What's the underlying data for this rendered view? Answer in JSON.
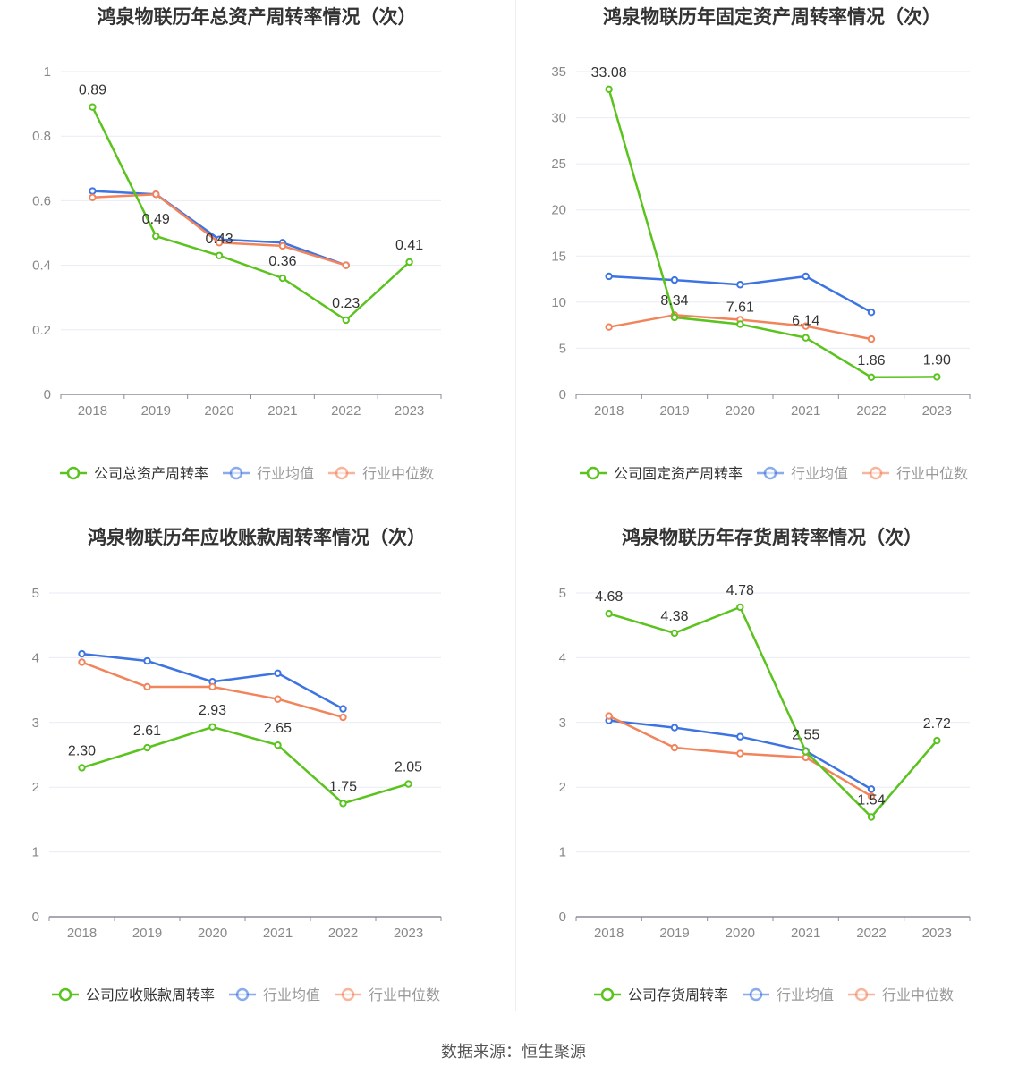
{
  "source": "数据来源：恒生聚源",
  "colors": {
    "company": "#5ac31e",
    "avg": "#3d74e2",
    "median": "#f2845c",
    "grid": "#e8ebf2",
    "axis": "#8a8d99",
    "tick": "#888888",
    "title": "#333333"
  },
  "chart_data": [
    {
      "type": "line",
      "title": "鸿泉物联历年总资产周转率情况（次）",
      "categories": [
        "2018",
        "2019",
        "2020",
        "2021",
        "2022",
        "2023"
      ],
      "ylim": [
        0,
        1
      ],
      "yticks": [
        0,
        0.2,
        0.4,
        0.6,
        0.8,
        1
      ],
      "ytick_labels": [
        "0",
        "0.2",
        "0.4",
        "0.6",
        "0.8",
        "1"
      ],
      "grid": true,
      "legend_position": "bottom",
      "series": [
        {
          "name": "公司总资产周转率",
          "key": "company",
          "values": [
            0.89,
            0.49,
            0.43,
            0.36,
            0.23,
            0.41
          ],
          "labels": [
            "0.89",
            "0.49",
            "0.43",
            "0.36",
            "0.23",
            "0.41"
          ]
        },
        {
          "name": "行业均值",
          "key": "avg",
          "values": [
            0.63,
            0.62,
            0.48,
            0.47,
            0.4,
            null
          ]
        },
        {
          "name": "行业中位数",
          "key": "median",
          "values": [
            0.61,
            0.62,
            0.47,
            0.46,
            0.4,
            null
          ]
        }
      ]
    },
    {
      "type": "line",
      "title": "鸿泉物联历年固定资产周转率情况（次）",
      "categories": [
        "2018",
        "2019",
        "2020",
        "2021",
        "2022",
        "2023"
      ],
      "ylim": [
        0,
        35
      ],
      "yticks": [
        0,
        5,
        10,
        15,
        20,
        25,
        30,
        35
      ],
      "ytick_labels": [
        "0",
        "5",
        "10",
        "15",
        "20",
        "25",
        "30",
        "35"
      ],
      "grid": true,
      "legend_position": "bottom",
      "series": [
        {
          "name": "公司固定资产周转率",
          "key": "company",
          "values": [
            33.08,
            8.34,
            7.61,
            6.14,
            1.86,
            1.9
          ],
          "labels": [
            "33.08",
            "8.34",
            "7.61",
            "6.14",
            "1.86",
            "1.90"
          ]
        },
        {
          "name": "行业均值",
          "key": "avg",
          "values": [
            12.8,
            12.4,
            11.9,
            12.8,
            8.9,
            null
          ]
        },
        {
          "name": "行业中位数",
          "key": "median",
          "values": [
            7.3,
            8.6,
            8.1,
            7.4,
            6.0,
            null
          ]
        }
      ]
    },
    {
      "type": "line",
      "title": "鸿泉物联历年应收账款周转率情况（次）",
      "categories": [
        "2018",
        "2019",
        "2020",
        "2021",
        "2022",
        "2023"
      ],
      "ylim": [
        0,
        5
      ],
      "yticks": [
        0,
        1,
        2,
        3,
        4,
        5
      ],
      "ytick_labels": [
        "0",
        "1",
        "2",
        "3",
        "4",
        "5"
      ],
      "grid": true,
      "legend_position": "bottom",
      "series": [
        {
          "name": "公司应收账款周转率",
          "key": "company",
          "values": [
            2.3,
            2.61,
            2.93,
            2.65,
            1.75,
            2.05
          ],
          "labels": [
            "2.30",
            "2.61",
            "2.93",
            "2.65",
            "1.75",
            "2.05"
          ]
        },
        {
          "name": "行业均值",
          "key": "avg",
          "values": [
            4.06,
            3.95,
            3.63,
            3.76,
            3.21,
            null
          ]
        },
        {
          "name": "行业中位数",
          "key": "median",
          "values": [
            3.93,
            3.55,
            3.55,
            3.36,
            3.08,
            null
          ]
        }
      ]
    },
    {
      "type": "line",
      "title": "鸿泉物联历年存货周转率情况（次）",
      "categories": [
        "2018",
        "2019",
        "2020",
        "2021",
        "2022",
        "2023"
      ],
      "ylim": [
        0,
        5
      ],
      "yticks": [
        0,
        1,
        2,
        3,
        4,
        5
      ],
      "ytick_labels": [
        "0",
        "1",
        "2",
        "3",
        "4",
        "5"
      ],
      "grid": true,
      "legend_position": "bottom",
      "series": [
        {
          "name": "公司存货周转率",
          "key": "company",
          "values": [
            4.68,
            4.38,
            4.78,
            2.55,
            1.54,
            2.72
          ],
          "labels": [
            "4.68",
            "4.38",
            "4.78",
            "2.55",
            "1.54",
            "2.72"
          ]
        },
        {
          "name": "行业均值",
          "key": "avg",
          "values": [
            3.03,
            2.92,
            2.78,
            2.56,
            1.97,
            null
          ]
        },
        {
          "name": "行业中位数",
          "key": "median",
          "values": [
            3.1,
            2.61,
            2.52,
            2.46,
            1.86,
            null
          ]
        }
      ]
    }
  ]
}
